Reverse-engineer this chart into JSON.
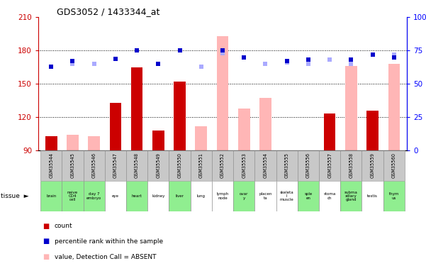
{
  "title": "GDS3052 / 1433344_at",
  "samples": [
    "GSM35544",
    "GSM35545",
    "GSM35546",
    "GSM35547",
    "GSM35548",
    "GSM35549",
    "GSM35550",
    "GSM35551",
    "GSM35552",
    "GSM35553",
    "GSM35554",
    "GSM35555",
    "GSM35556",
    "GSM35557",
    "GSM35558",
    "GSM35559",
    "GSM35560"
  ],
  "tissues": [
    "brain",
    "naive\nCD4\ncell",
    "day 7\nembryo",
    "eye",
    "heart",
    "kidney",
    "liver",
    "lung",
    "lymph\nnode",
    "ovar\ny",
    "placen\nta",
    "skeleta\nl\nmuscle",
    "sple\nen",
    "stoma\nch",
    "subma\nxillary\ngland",
    "testis",
    "thym\nus"
  ],
  "tissue_colors": [
    "#90ee90",
    "#90ee90",
    "#90ee90",
    "#ffffff",
    "#90ee90",
    "#ffffff",
    "#90ee90",
    "#ffffff",
    "#ffffff",
    "#90ee90",
    "#ffffff",
    "#ffffff",
    "#90ee90",
    "#ffffff",
    "#90ee90",
    "#ffffff",
    "#90ee90"
  ],
  "count_values": [
    103,
    0,
    0,
    133,
    165,
    108,
    152,
    0,
    0,
    0,
    0,
    0,
    0,
    123,
    0,
    126,
    0
  ],
  "absent_value_bars": [
    0,
    104,
    103,
    0,
    0,
    0,
    0,
    112,
    193,
    128,
    137,
    0,
    0,
    0,
    166,
    0,
    168
  ],
  "blue_dark": [
    63,
    67,
    0,
    69,
    75,
    65,
    75,
    0,
    75,
    70,
    0,
    67,
    68,
    0,
    68,
    72,
    70
  ],
  "blue_light": [
    0,
    65,
    65,
    0,
    0,
    0,
    0,
    63,
    73,
    0,
    65,
    66,
    65,
    68,
    65,
    0,
    72
  ],
  "ymin": 90,
  "ymax": 210,
  "yticks_left": [
    90,
    120,
    150,
    180,
    210
  ],
  "yticks_right": [
    0,
    25,
    50,
    75,
    100
  ],
  "count_color": "#cc0000",
  "absent_bar_color": "#ffb6b6",
  "dark_blue_color": "#0000cc",
  "light_blue_color": "#aaaaff",
  "gsm_bg_color": "#c8c8c8",
  "legend_items": [
    {
      "color": "#cc0000",
      "label": "count"
    },
    {
      "color": "#0000cc",
      "label": "percentile rank within the sample"
    },
    {
      "color": "#ffb6b6",
      "label": "value, Detection Call = ABSENT"
    },
    {
      "color": "#aaaaff",
      "label": "rank, Detection Call = ABSENT"
    }
  ]
}
